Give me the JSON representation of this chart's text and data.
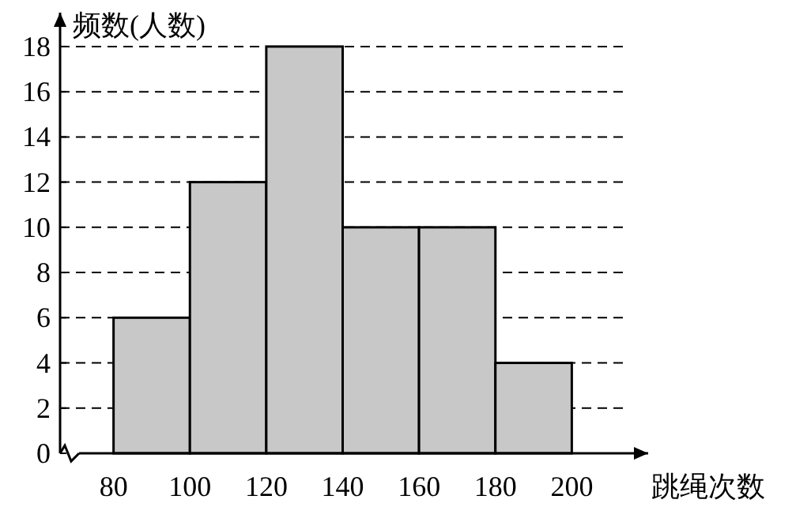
{
  "chart_data": {
    "type": "histogram",
    "ylabel": "频数(人数)",
    "xlabel": "跳绳次数",
    "bins": [
      80,
      100,
      120,
      140,
      160,
      180,
      200
    ],
    "values": [
      6,
      12,
      18,
      10,
      10,
      4
    ],
    "color": "#c8c8c8",
    "xlim": [
      66,
      220
    ],
    "xticks": [
      80,
      100,
      120,
      140,
      160,
      180,
      200
    ],
    "ylim": [
      0,
      19.5
    ],
    "yticks": [
      0,
      2,
      4,
      6,
      8,
      10,
      12,
      14,
      16,
      18
    ],
    "grid": "y",
    "line_style": "dashed"
  }
}
